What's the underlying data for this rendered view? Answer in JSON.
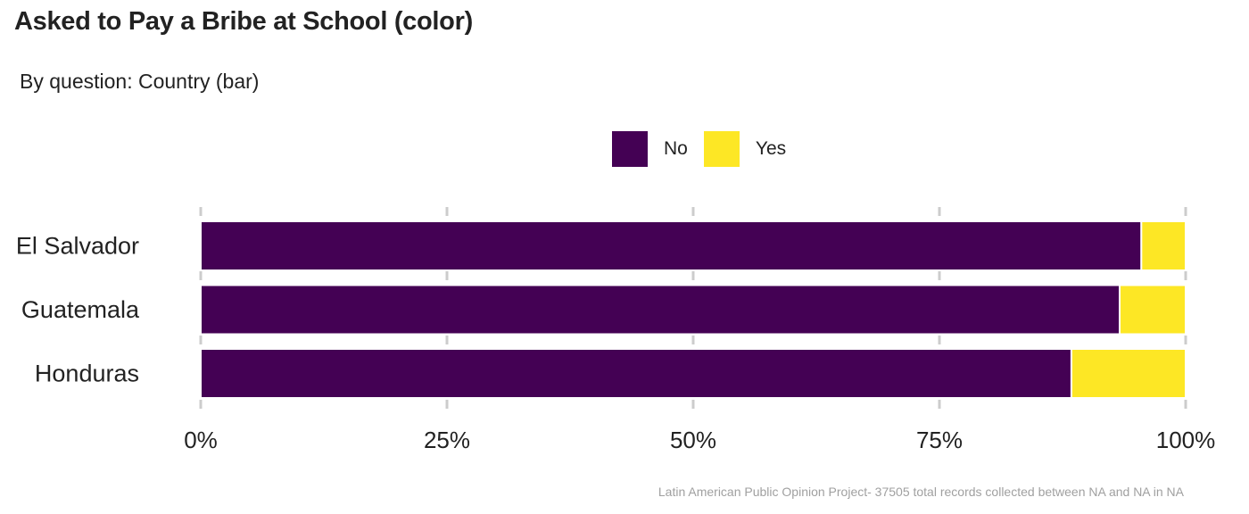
{
  "title": "Asked to Pay a Bribe at School (color)",
  "subtitle": "By question: Country (bar)",
  "caption": "Latin American Public Opinion Project- 37505 total records collected between NA and NA in  NA",
  "colors": {
    "No": "#440154",
    "Yes": "#fde725",
    "grid": "#cccccc",
    "axis_text": "#222222"
  },
  "chart_data": {
    "type": "bar",
    "orientation": "horizontal",
    "stacked": true,
    "categories": [
      "El Salvador",
      "Guatemala",
      "Honduras"
    ],
    "series": [
      {
        "name": "No",
        "values": [
          0.955,
          0.933,
          0.884
        ]
      },
      {
        "name": "Yes",
        "values": [
          0.045,
          0.067,
          0.116
        ]
      }
    ],
    "x_ticks": [
      "0%",
      "25%",
      "50%",
      "75%",
      "100%"
    ],
    "xlim": [
      0,
      1
    ],
    "legend_position": "top",
    "grid": true
  }
}
